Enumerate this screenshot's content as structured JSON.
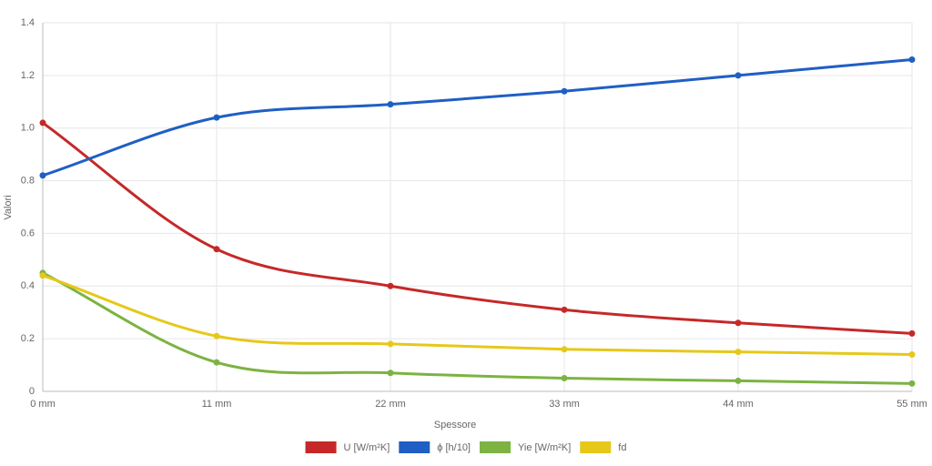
{
  "chart_data": {
    "type": "line",
    "x_label": "Spessore",
    "y_label": "Valori",
    "categories": [
      "0 mm",
      "11 mm",
      "22 mm",
      "33 mm",
      "44 mm",
      "55 mm"
    ],
    "series": [
      {
        "name": "U [W/m²K]",
        "color": "#c62828",
        "values": [
          1.02,
          0.54,
          0.4,
          0.31,
          0.26,
          0.22
        ]
      },
      {
        "name": "ϕ [h/10]",
        "color": "#1f5fc4",
        "values": [
          0.82,
          1.04,
          1.09,
          1.14,
          1.2,
          1.26
        ]
      },
      {
        "name": "Yie [W/m²K]",
        "color": "#7cb342",
        "values": [
          0.45,
          0.11,
          0.07,
          0.05,
          0.04,
          0.03
        ]
      },
      {
        "name": "fd",
        "color": "#e6c81a",
        "values": [
          0.44,
          0.21,
          0.18,
          0.16,
          0.15,
          0.14
        ]
      }
    ],
    "ylim": [
      0,
      1.4
    ],
    "yticks": [
      0,
      0.2,
      0.4,
      0.6,
      0.8,
      {
        "value": 1,
        "label": "1.0"
      },
      1.2,
      1.4
    ],
    "grid": true,
    "legend": "bottom"
  }
}
